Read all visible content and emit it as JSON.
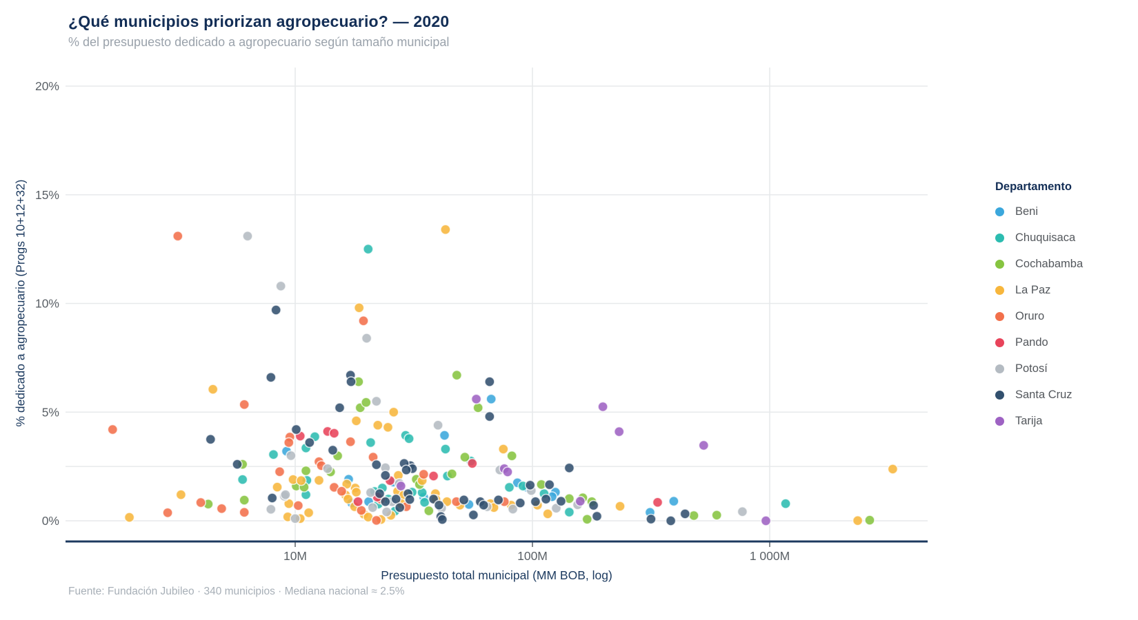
{
  "header": {
    "title": "¿Qué municipios priorizan agropecuario? — 2020",
    "subtitle": "% del presupuesto dedicado a agropecuario según tamaño municipal"
  },
  "footer": {
    "source": "Fuente: Fundación Jubileo · 340 municipios · Mediana nacional ≈ 2.5%"
  },
  "legend": {
    "title": "Departamento",
    "items": [
      {
        "label": "Beni",
        "color": "#3BA7DC"
      },
      {
        "label": "Chuquisaca",
        "color": "#2CBCB0"
      },
      {
        "label": "Cochabamba",
        "color": "#86C440"
      },
      {
        "label": "La Paz",
        "color": "#F7B63C"
      },
      {
        "label": "Oruro",
        "color": "#F2704B"
      },
      {
        "label": "Pando",
        "color": "#E8435A"
      },
      {
        "label": "Potosí",
        "color": "#B4BBC2"
      },
      {
        "label": "Santa Cruz",
        "color": "#32506E"
      },
      {
        "label": "Tarija",
        "color": "#9E62C3"
      }
    ]
  },
  "chart_data": {
    "type": "scatter",
    "title": "¿Qué municipios priorizan agropecuario? — 2020",
    "xlabel": "Presupuesto total municipal (MM BOB, log)",
    "ylabel": "% dedicado a agropecuario (Progs 10+12+32)",
    "x_scale": "log",
    "xlim_mm": [
      1.1,
      4600
    ],
    "ylim_pct": [
      0,
      20
    ],
    "grid": true,
    "legend_position": "right",
    "median_line_pct": 2.5,
    "x_ticks": [
      {
        "value": 10,
        "label": "10M"
      },
      {
        "value": 100,
        "label": "100M"
      },
      {
        "value": 1000,
        "label": "1 000M"
      }
    ],
    "y_ticks": [
      {
        "value": 0,
        "label": "0%"
      },
      {
        "value": 5,
        "label": "5%"
      },
      {
        "value": 10,
        "label": "10%"
      },
      {
        "value": 15,
        "label": "15%"
      },
      {
        "value": 20,
        "label": "20%"
      }
    ],
    "point_units": [
      "presupuesto_MM_BOB",
      "pct_agropecuario"
    ],
    "series": [
      {
        "name": "Beni",
        "color": "#3BA7DC",
        "points": [
          [
            67,
            5.6
          ],
          [
            42.6,
            3.93
          ],
          [
            25.9,
            1.78
          ],
          [
            34.8,
            1.09
          ],
          [
            16.8,
            1.91
          ],
          [
            17.3,
            0.82
          ],
          [
            20.4,
            0.88
          ],
          [
            54,
            0.75
          ],
          [
            94.7,
            1.54
          ],
          [
            86.4,
            1.75
          ],
          [
            125,
            1.32
          ],
          [
            121,
            1.11
          ],
          [
            394,
            0.9
          ],
          [
            313,
            0.39
          ],
          [
            9.2,
            3.2
          ]
        ]
      },
      {
        "name": "Chuquisaca",
        "color": "#2CBCB0",
        "points": [
          [
            20.3,
            12.5
          ],
          [
            8.1,
            3.05
          ],
          [
            6.0,
            1.9
          ],
          [
            11.2,
            1.86
          ],
          [
            11.1,
            1.2
          ],
          [
            12.1,
            3.87
          ],
          [
            29.2,
            3.93
          ],
          [
            30.2,
            3.78
          ],
          [
            43,
            3.3
          ],
          [
            20.8,
            3.6
          ],
          [
            21.6,
            1.35
          ],
          [
            23.3,
            1.51
          ],
          [
            31.1,
            1.32
          ],
          [
            34.3,
            1.3
          ],
          [
            35.1,
            0.85
          ],
          [
            91.2,
            1.6
          ],
          [
            79.9,
            1.54
          ],
          [
            55,
            2.75
          ],
          [
            43.8,
            2.06
          ],
          [
            26.3,
            0.44
          ],
          [
            22.4,
            0.77
          ],
          [
            24.7,
            1.0
          ],
          [
            112,
            1.25
          ],
          [
            143,
            0.4
          ],
          [
            1167,
            0.79
          ],
          [
            11.1,
            3.35
          ]
        ]
      },
      {
        "name": "Cochabamba",
        "color": "#86C440",
        "points": [
          [
            6.0,
            2.6
          ],
          [
            11.1,
            2.3
          ],
          [
            10.1,
            1.6
          ],
          [
            10.9,
            1.55
          ],
          [
            4.3,
            0.77
          ],
          [
            6.1,
            0.95
          ],
          [
            18.5,
            6.4
          ],
          [
            48,
            6.7
          ],
          [
            59,
            5.2
          ],
          [
            18.8,
            5.2
          ],
          [
            19.9,
            5.45
          ],
          [
            15.1,
            2.99
          ],
          [
            14.1,
            2.25
          ],
          [
            32.4,
            1.91
          ],
          [
            33.4,
            1.67
          ],
          [
            36.6,
            0.46
          ],
          [
            51.9,
            2.93
          ],
          [
            81.9,
            2.99
          ],
          [
            109,
            1.67
          ],
          [
            45.8,
            2.16
          ],
          [
            143,
            1.02
          ],
          [
            163,
            1.06
          ],
          [
            178,
            0.88
          ],
          [
            170,
            0.07
          ],
          [
            479,
            0.24
          ],
          [
            598,
            0.26
          ],
          [
            2640,
            0.03
          ]
        ]
      },
      {
        "name": "La Paz",
        "color": "#F7B63C",
        "points": [
          [
            4.5,
            6.05
          ],
          [
            9.8,
            1.9
          ],
          [
            10.6,
            1.85
          ],
          [
            8.4,
            1.55
          ],
          [
            3.3,
            1.2
          ],
          [
            9.4,
            0.79
          ],
          [
            9.3,
            0.18
          ],
          [
            10.5,
            0.1
          ],
          [
            11.4,
            0.37
          ],
          [
            2.0,
            0.16
          ],
          [
            43,
            13.4
          ],
          [
            18.6,
            9.8
          ],
          [
            26,
            5.0
          ],
          [
            18.1,
            4.6
          ],
          [
            22.3,
            4.4
          ],
          [
            24.6,
            4.3
          ],
          [
            12.6,
            1.86
          ],
          [
            17.9,
            1.51
          ],
          [
            18.1,
            1.32
          ],
          [
            27.2,
            2.09
          ],
          [
            27.0,
            1.35
          ],
          [
            28.7,
            1.19
          ],
          [
            28.0,
            0.79
          ],
          [
            34.3,
            1.85
          ],
          [
            39.0,
            1.25
          ],
          [
            39.2,
            0.98
          ],
          [
            43.6,
            0.88
          ],
          [
            49.5,
            0.72
          ],
          [
            66.5,
            0.79
          ],
          [
            68.8,
            0.61
          ],
          [
            81.3,
            0.72
          ],
          [
            105,
            0.72
          ],
          [
            75.4,
            3.3
          ],
          [
            16.5,
            1.69
          ],
          [
            16.3,
            1.19
          ],
          [
            16.7,
            1.0
          ],
          [
            17.8,
            0.65
          ],
          [
            19.5,
            0.3
          ],
          [
            20.3,
            0.17
          ],
          [
            23.0,
            0.06
          ],
          [
            25.3,
            0.25
          ],
          [
            116,
            0.32
          ],
          [
            234,
            0.67
          ],
          [
            3300,
            2.38
          ],
          [
            2350,
            0.01
          ]
        ]
      },
      {
        "name": "Oruro",
        "color": "#F2704B",
        "points": [
          [
            3.2,
            13.1
          ],
          [
            6.1,
            5.35
          ],
          [
            1.7,
            4.2
          ],
          [
            9.5,
            3.85
          ],
          [
            9.4,
            3.6
          ],
          [
            4.0,
            0.84
          ],
          [
            4.9,
            0.56
          ],
          [
            6.1,
            0.39
          ],
          [
            10.3,
            0.7
          ],
          [
            2.9,
            0.37
          ],
          [
            19.4,
            9.2
          ],
          [
            17.1,
            3.64
          ],
          [
            21.3,
            2.93
          ],
          [
            12.6,
            2.72
          ],
          [
            12.9,
            2.54
          ],
          [
            14.6,
            1.54
          ],
          [
            29.4,
            0.65
          ],
          [
            34.8,
            2.14
          ],
          [
            47.8,
            0.88
          ],
          [
            76.1,
            0.88
          ],
          [
            15.7,
            1.36
          ],
          [
            19.0,
            0.48
          ],
          [
            22.0,
            0.02
          ],
          [
            22.9,
            1.0
          ],
          [
            8.6,
            2.26
          ]
        ]
      },
      {
        "name": "Pando",
        "color": "#E8435A",
        "points": [
          [
            10.5,
            3.9
          ],
          [
            13.7,
            4.11
          ],
          [
            14.6,
            4.03
          ],
          [
            18.4,
            0.88
          ],
          [
            25.1,
            1.85
          ],
          [
            38.3,
            2.06
          ],
          [
            55.8,
            2.64
          ],
          [
            22.2,
            1.09
          ],
          [
            337,
            0.85
          ]
        ]
      },
      {
        "name": "Potosí",
        "color": "#B4BBC2",
        "points": [
          [
            6.3,
            13.1
          ],
          [
            8.7,
            10.8
          ],
          [
            7.9,
            0.53
          ],
          [
            9.0,
            1.13
          ],
          [
            10.0,
            0.1
          ],
          [
            9.1,
            1.2
          ],
          [
            20,
            8.4
          ],
          [
            22,
            5.5
          ],
          [
            40,
            4.4
          ],
          [
            13.7,
            2.4
          ],
          [
            20.8,
            1.3
          ],
          [
            24.0,
            2.44
          ],
          [
            27.5,
            1.72
          ],
          [
            41.4,
            0.58
          ],
          [
            64.4,
            0.65
          ],
          [
            82.7,
            0.54
          ],
          [
            98.9,
            1.39
          ],
          [
            72.9,
            2.34
          ],
          [
            24.3,
            0.41
          ],
          [
            21.2,
            0.61
          ],
          [
            25.6,
            0.88
          ],
          [
            126,
            0.58
          ],
          [
            155,
            0.74
          ],
          [
            767,
            0.42
          ],
          [
            9.6,
            3.0
          ]
        ]
      },
      {
        "name": "Santa Cruz",
        "color": "#32506E",
        "points": [
          [
            8.3,
            9.7
          ],
          [
            7.9,
            6.6
          ],
          [
            4.4,
            3.75
          ],
          [
            10.1,
            4.2
          ],
          [
            11.5,
            3.6
          ],
          [
            5.7,
            2.6
          ],
          [
            8.0,
            1.05
          ],
          [
            17.1,
            6.7
          ],
          [
            17.2,
            6.4
          ],
          [
            66,
            6.4
          ],
          [
            66,
            4.8
          ],
          [
            15.4,
            5.2
          ],
          [
            14.4,
            3.25
          ],
          [
            22.7,
            1.25
          ],
          [
            24.0,
            2.09
          ],
          [
            29.9,
            1.25
          ],
          [
            30.4,
            0.98
          ],
          [
            30.6,
            2.54
          ],
          [
            31.2,
            2.4
          ],
          [
            28.8,
            2.64
          ],
          [
            29.4,
            2.34
          ],
          [
            22.0,
            2.58
          ],
          [
            38.3,
            1.0
          ],
          [
            40.4,
            0.72
          ],
          [
            41.1,
            0.2
          ],
          [
            41.7,
            0.06
          ],
          [
            51.4,
            0.96
          ],
          [
            56.4,
            0.27
          ],
          [
            60.3,
            0.88
          ],
          [
            62.3,
            0.72
          ],
          [
            71.9,
            0.96
          ],
          [
            88.8,
            0.82
          ],
          [
            97.8,
            1.64
          ],
          [
            103,
            0.88
          ],
          [
            114,
            1.0
          ],
          [
            143,
            2.43
          ],
          [
            118,
            1.66
          ],
          [
            132,
            0.9
          ],
          [
            181,
            0.71
          ],
          [
            187,
            0.21
          ],
          [
            316,
            0.08
          ],
          [
            383,
            0.0
          ],
          [
            440,
            0.32
          ],
          [
            24.0,
            0.88
          ],
          [
            26.6,
            1.0
          ],
          [
            27.6,
            0.61
          ]
        ]
      },
      {
        "name": "Tarija",
        "color": "#9E62C3",
        "points": [
          [
            58,
            5.6
          ],
          [
            27.9,
            1.6
          ],
          [
            76.1,
            2.4
          ],
          [
            78.6,
            2.25
          ],
          [
            198,
            5.25
          ],
          [
            232,
            4.1
          ],
          [
            527,
            3.47
          ],
          [
            159,
            0.9
          ],
          [
            964,
            0.0
          ]
        ]
      }
    ]
  }
}
